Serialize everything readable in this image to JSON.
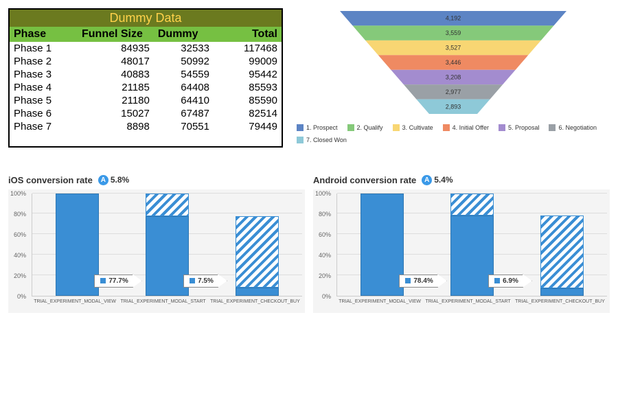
{
  "dummy_table": {
    "title": "Dummy Data",
    "title_bg": "#6b7a1f",
    "title_color": "#ffd24a",
    "header_bg": "#76c042",
    "header_color": "#000000",
    "columns": [
      "Phase",
      "Funnel Size",
      "Dummy",
      "Total"
    ],
    "rows": [
      [
        "Phase 1",
        "84935",
        "32533",
        "117468"
      ],
      [
        "Phase 2",
        "48017",
        "50992",
        "99009"
      ],
      [
        "Phase 3",
        "40883",
        "54559",
        "95442"
      ],
      [
        "Phase 4",
        "21185",
        "64408",
        "85593"
      ],
      [
        "Phase 5",
        "21180",
        "64410",
        "85590"
      ],
      [
        "Phase 6",
        "15027",
        "67487",
        "82514"
      ],
      [
        "Phase 7",
        "8898",
        "70551",
        "79449"
      ]
    ]
  },
  "funnel": {
    "type": "funnel",
    "stages": [
      {
        "label": "1. Prospect",
        "value": "4,192",
        "color": "#5c84c4"
      },
      {
        "label": "2. Qualify",
        "value": "3,559",
        "color": "#85c97a"
      },
      {
        "label": "3. Cultivate",
        "value": "3,527",
        "color": "#f8d673"
      },
      {
        "label": "4. Initial Offer",
        "value": "3,446",
        "color": "#ef8a62"
      },
      {
        "label": "5. Proposal",
        "value": "3,208",
        "color": "#a38ccf"
      },
      {
        "label": "6. Negotiation",
        "value": "2,977",
        "color": "#9aa0a6"
      },
      {
        "label": "7. Closed Won",
        "value": "2,893",
        "color": "#8ec9d8"
      }
    ],
    "value_fontsize": 9,
    "value_color": "#333333"
  },
  "conversion_charts": {
    "ylim": [
      0,
      100
    ],
    "ytick_step": 20,
    "bar_color": "#3a8ed4",
    "grid_color": "#dddddd",
    "bg_color": "#f4f4f4",
    "ios": {
      "title": "iOS conversion rate",
      "badge_letter": "A",
      "badge_value": "5.8%",
      "categories": [
        "TRIAL_EXPERIMENT_MODAL_VIEW",
        "TRIAL_EXPERIMENT_MODAL_START",
        "TRIAL_EXPERIMENT_CHECKOUT_BUY"
      ],
      "bars": [
        {
          "solid": 100,
          "hatch": 0
        },
        {
          "solid": 77.7,
          "hatch": 22.3
        },
        {
          "solid": 7.5,
          "hatch": 70.2
        }
      ],
      "arrows": [
        {
          "between": "0-1",
          "text": "77.7%"
        },
        {
          "between": "1-2",
          "text": "7.5%"
        }
      ],
      "bar3_label": ""
    },
    "android": {
      "title": "Android conversion rate",
      "badge_letter": "A",
      "badge_value": "5.4%",
      "categories": [
        "TRIAL_EXPERIMENT_MODAL_VIEW",
        "TRIAL_EXPERIMENT_MODAL_START",
        "TRIAL_EXPERIMENT_CHECKOUT_BUY"
      ],
      "bars": [
        {
          "solid": 100,
          "hatch": 0
        },
        {
          "solid": 78.4,
          "hatch": 21.6
        },
        {
          "solid": 6.9,
          "hatch": 71.5
        }
      ],
      "arrows": [
        {
          "between": "0-1",
          "text": "78.4%"
        },
        {
          "between": "1-2",
          "text": "6.9%"
        }
      ],
      "bar3_label": ""
    }
  }
}
